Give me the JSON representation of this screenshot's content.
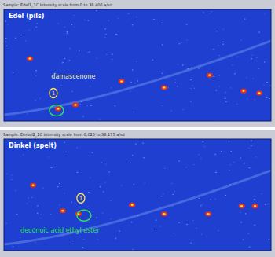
{
  "chart_data": [
    {
      "type": "scatter",
      "title": "Edel (pils)",
      "subtitle": "Sample: Edel1_1C    Intensity scale from 0 to 38 406 a/sd",
      "x": [
        9.7,
        20.3,
        26.8,
        44,
        60,
        77,
        89.7,
        95.6
      ],
      "values": [
        56,
        11,
        14.5,
        35.5,
        30,
        41,
        27,
        25
      ],
      "color": "#e8301f",
      "xlim": [
        0,
        100
      ],
      "ylim": [
        0,
        100
      ],
      "tick_labels": false,
      "annotations": [
        {
          "text": "1",
          "x": 18.5,
          "y": 25,
          "color": "#ffe24a"
        },
        {
          "text": "damascenone",
          "x": 26,
          "y": 38,
          "color": "#f4f0b0"
        }
      ]
    },
    {
      "type": "scatter",
      "title": "Dinkel (spelt)",
      "subtitle": "Sample: Dinkel2_1C    Intensity scale from 0.025 to 38.175 a/sd",
      "x": [
        10.9,
        22,
        27.9,
        48,
        60,
        76.5,
        89,
        94
      ],
      "values": [
        58.6,
        35.7,
        32.9,
        41,
        33,
        33,
        40,
        40
      ],
      "color": "#e8301f",
      "xlim": [
        0,
        100
      ],
      "ylim": [
        0,
        100
      ],
      "tick_labels": false,
      "annotations": [
        {
          "text": "1",
          "x": 28.8,
          "y": 47,
          "color": "#ffe24a"
        },
        {
          "text": "deconoic acid ethyl ester",
          "x": 21,
          "y": 16,
          "color": "#2ee05a"
        }
      ]
    }
  ]
}
